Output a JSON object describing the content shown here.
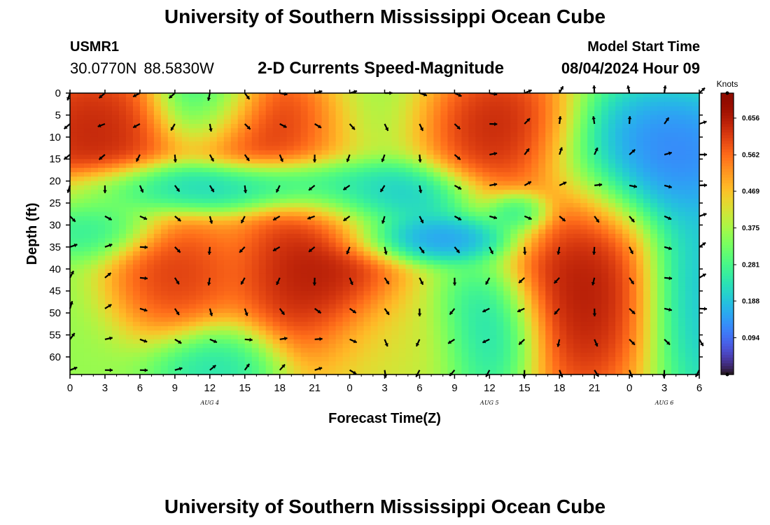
{
  "header": {
    "title": "University of Southern Mississippi Ocean Cube",
    "station": "USMR1",
    "latitude": "30.0770N",
    "longitude": "88.5830W",
    "plot_title": "2-D Currents Speed-Magnitude",
    "model_start_label": "Model Start Time",
    "model_start_value": "08/04/2024 Hour 09"
  },
  "footer": {
    "title": "University of Southern Mississippi Ocean Cube"
  },
  "chart_data": {
    "type": "heatmap",
    "title": "2-D Currents Speed-Magnitude",
    "xlabel": "Forecast Time(Z)",
    "ylabel": "Depth (ft)",
    "x_tick_labels": [
      "0",
      "3",
      "6",
      "9",
      "12",
      "15",
      "18",
      "21",
      "0",
      "3",
      "6",
      "9",
      "12",
      "15",
      "18",
      "21",
      "0",
      "3",
      "6"
    ],
    "x_range_hours": [
      0,
      54
    ],
    "day_labels": [
      {
        "label": "AUG 4",
        "at_hour": 12
      },
      {
        "label": "AUG 5",
        "at_hour": 36
      },
      {
        "label": "AUG 6",
        "at_hour": 51
      }
    ],
    "y_tick_labels": [
      "0",
      "5",
      "10",
      "15",
      "20",
      "25",
      "30",
      "35",
      "40",
      "45",
      "50",
      "55",
      "60"
    ],
    "y_range_ft": [
      0,
      64
    ],
    "y_inverted": true,
    "colorbar": {
      "unit": "Knots",
      "ticks": [
        "0.094",
        "0.188",
        "0.281",
        "0.375",
        "0.469",
        "0.562",
        "0.656"
      ],
      "tick_values": [
        0.094,
        0.188,
        0.281,
        0.375,
        0.469,
        0.562,
        0.656
      ],
      "range": [
        0.0,
        0.72
      ],
      "colormap": "turbo"
    },
    "arrow_hours": [
      0,
      3,
      6,
      9,
      12,
      15,
      18,
      21,
      24,
      27,
      30,
      33,
      36,
      39,
      42,
      45,
      48,
      51,
      54
    ],
    "arrow_depths": [
      0,
      7,
      14,
      21,
      28,
      35,
      42,
      49,
      56,
      63
    ],
    "speed_features": [
      {
        "hour": 2,
        "depth": 9,
        "speed": 0.7,
        "sh": 4,
        "sd": 10
      },
      {
        "hour": 16,
        "depth": 6,
        "speed": 0.68,
        "sh": 3.5,
        "sd": 8
      },
      {
        "hour": 12,
        "depth": 1,
        "speed": 0.15,
        "sh": 2.5,
        "sd": 6
      },
      {
        "hour": 21,
        "depth": 41,
        "speed": 0.72,
        "sh": 4,
        "sd": 12
      },
      {
        "hour": 9,
        "depth": 41,
        "speed": 0.66,
        "sh": 3,
        "sd": 8
      },
      {
        "hour": 37,
        "depth": 8,
        "speed": 0.7,
        "sh": 3.5,
        "sd": 9
      },
      {
        "hour": 44,
        "depth": 45,
        "speed": 0.72,
        "sh": 3.5,
        "sd": 15
      },
      {
        "hour": 51,
        "depth": 14,
        "speed": 0.06,
        "sh": 5,
        "sd": 9
      },
      {
        "hour": 55,
        "depth": 45,
        "speed": 0.15,
        "sh": 3,
        "sd": 15
      },
      {
        "hour": 36,
        "depth": 55,
        "speed": 0.17,
        "sh": 2.5,
        "sd": 8
      },
      {
        "hour": 31,
        "depth": 33,
        "speed": 0.09,
        "sh": 4,
        "sd": 3
      },
      {
        "hour": 16,
        "depth": 21,
        "speed": 0.14,
        "sh": 7,
        "sd": 3
      },
      {
        "hour": 8,
        "depth": 22,
        "speed": 0.2,
        "sh": 5,
        "sd": 3
      },
      {
        "hour": 27,
        "depth": 24,
        "speed": 0.15,
        "sh": 4,
        "sd": 4
      },
      {
        "hour": 2,
        "depth": 30,
        "speed": 0.2,
        "sh": 3,
        "sd": 4
      },
      {
        "hour": 13,
        "depth": 62,
        "speed": 0.2,
        "sh": 3,
        "sd": 5
      },
      {
        "hour": 28,
        "depth": 58,
        "speed": 0.42,
        "sh": 4,
        "sd": 7
      },
      {
        "hour": 38.5,
        "depth": 27,
        "speed": 0.18,
        "sh": 1.5,
        "sd": 2.5
      }
    ]
  }
}
